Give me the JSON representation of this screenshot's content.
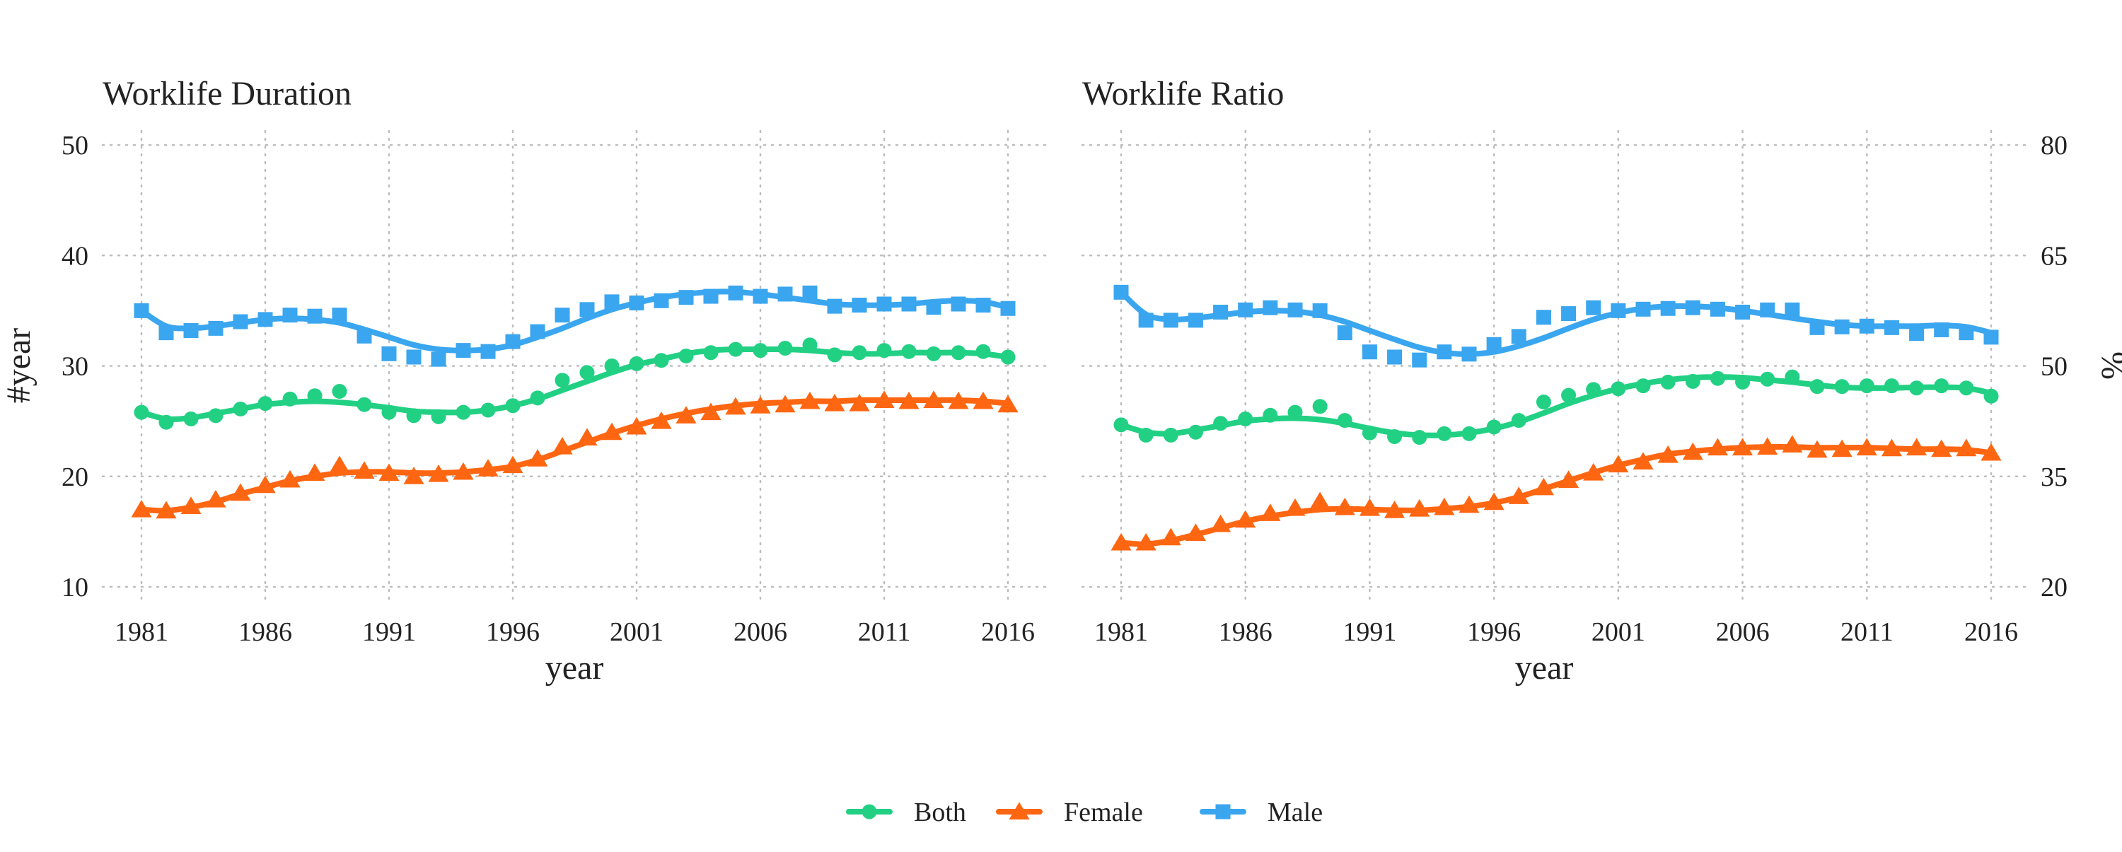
{
  "colors": {
    "Both": "#22d084",
    "Female": "#ff6611",
    "Male": "#3aa6ef"
  },
  "legend": {
    "position": "bottom",
    "items": [
      {
        "name": "Both",
        "marker": "circle"
      },
      {
        "name": "Female",
        "marker": "triangle"
      },
      {
        "name": "Male",
        "marker": "square"
      }
    ]
  },
  "chart_data": [
    {
      "type": "line",
      "title": "Worklife Duration",
      "xlabel": "year",
      "ylabel": "#year",
      "y_axis_side": "left",
      "xlim": [
        1981,
        2016
      ],
      "ylim": [
        10,
        50
      ],
      "x_ticks": [
        1981,
        1986,
        1991,
        1996,
        2001,
        2006,
        2011,
        2016
      ],
      "y_ticks": [
        10,
        20,
        30,
        40,
        50
      ],
      "grid": true,
      "x": [
        1981,
        1982,
        1983,
        1984,
        1985,
        1986,
        1987,
        1988,
        1989,
        1990,
        1991,
        1992,
        1993,
        1994,
        1995,
        1996,
        1997,
        1998,
        1999,
        2000,
        2001,
        2002,
        2003,
        2004,
        2005,
        2006,
        2007,
        2008,
        2009,
        2010,
        2011,
        2012,
        2013,
        2014,
        2015,
        2016
      ],
      "series": [
        {
          "name": "Both",
          "marker": "circle",
          "values": [
            25.8,
            24.9,
            25.2,
            25.5,
            26.1,
            26.6,
            27.0,
            27.3,
            27.7,
            26.5,
            25.8,
            25.5,
            25.4,
            25.8,
            26.0,
            26.4,
            27.1,
            28.7,
            29.4,
            30.0,
            30.2,
            30.5,
            30.9,
            31.2,
            31.5,
            31.4,
            31.6,
            31.9,
            31.0,
            31.2,
            31.4,
            31.3,
            31.1,
            31.2,
            31.3,
            30.8
          ],
          "trend": [
            25.8,
            25.2,
            25.3,
            25.7,
            26.1,
            26.5,
            26.7,
            26.8,
            26.7,
            26.5,
            26.2,
            25.9,
            25.8,
            25.8,
            26.0,
            26.4,
            27.0,
            27.8,
            28.6,
            29.4,
            30.1,
            30.6,
            31.1,
            31.4,
            31.5,
            31.5,
            31.5,
            31.4,
            31.2,
            31.1,
            31.1,
            31.2,
            31.2,
            31.2,
            31.1,
            30.8
          ]
        },
        {
          "name": "Female",
          "marker": "triangle",
          "values": [
            17.0,
            16.9,
            17.3,
            17.9,
            18.5,
            19.2,
            19.7,
            20.3,
            21.0,
            20.5,
            20.3,
            20.0,
            20.2,
            20.4,
            20.7,
            21.0,
            21.6,
            22.7,
            23.5,
            24.0,
            24.5,
            25.0,
            25.5,
            25.8,
            26.3,
            26.4,
            26.5,
            26.8,
            26.6,
            26.6,
            26.9,
            26.8,
            26.9,
            26.8,
            26.8,
            26.5
          ],
          "trend": [
            17.0,
            16.9,
            17.2,
            17.7,
            18.4,
            19.0,
            19.6,
            20.0,
            20.3,
            20.4,
            20.4,
            20.3,
            20.3,
            20.4,
            20.6,
            20.9,
            21.5,
            22.3,
            23.1,
            23.9,
            24.6,
            25.2,
            25.7,
            26.1,
            26.4,
            26.6,
            26.7,
            26.8,
            26.8,
            26.9,
            26.9,
            26.9,
            26.9,
            26.9,
            26.8,
            26.6
          ]
        },
        {
          "name": "Male",
          "marker": "square",
          "values": [
            35.0,
            33.0,
            33.2,
            33.4,
            34.0,
            34.2,
            34.6,
            34.5,
            34.6,
            32.7,
            31.1,
            30.8,
            30.6,
            31.4,
            31.3,
            32.2,
            33.1,
            34.6,
            35.1,
            35.8,
            35.7,
            35.9,
            36.2,
            36.3,
            36.6,
            36.3,
            36.5,
            36.6,
            35.4,
            35.5,
            35.6,
            35.6,
            35.3,
            35.6,
            35.5,
            35.2
          ],
          "trend": [
            35.0,
            33.6,
            33.4,
            33.6,
            33.9,
            34.2,
            34.3,
            34.2,
            33.9,
            33.3,
            32.6,
            31.9,
            31.5,
            31.4,
            31.5,
            31.9,
            32.6,
            33.4,
            34.3,
            35.1,
            35.7,
            36.2,
            36.5,
            36.7,
            36.7,
            36.5,
            36.2,
            35.9,
            35.6,
            35.5,
            35.5,
            35.6,
            35.8,
            35.9,
            35.8,
            35.3
          ]
        }
      ]
    },
    {
      "type": "line",
      "title": "Worklife Ratio",
      "xlabel": "year",
      "ylabel": "%",
      "y_axis_side": "right",
      "xlim": [
        1981,
        2016
      ],
      "ylim": [
        20,
        80
      ],
      "x_ticks": [
        1981,
        1986,
        1991,
        1996,
        2001,
        2006,
        2011,
        2016
      ],
      "y_ticks": [
        20,
        35,
        50,
        65,
        80
      ],
      "grid": true,
      "x": [
        1981,
        1982,
        1983,
        1984,
        1985,
        1986,
        1987,
        1988,
        1989,
        1990,
        1991,
        1992,
        1993,
        1994,
        1995,
        1996,
        1997,
        1998,
        1999,
        2000,
        2001,
        2002,
        2003,
        2004,
        2005,
        2006,
        2007,
        2008,
        2009,
        2010,
        2011,
        2012,
        2013,
        2014,
        2015,
        2016
      ],
      "series": [
        {
          "name": "Both",
          "marker": "circle",
          "values": [
            42.0,
            40.6,
            40.6,
            41.0,
            42.2,
            42.8,
            43.3,
            43.7,
            44.5,
            42.6,
            40.9,
            40.4,
            40.3,
            40.8,
            40.8,
            41.7,
            42.6,
            45.1,
            46.0,
            46.8,
            46.9,
            47.3,
            47.8,
            47.9,
            48.3,
            47.8,
            48.2,
            48.5,
            47.2,
            47.2,
            47.3,
            47.3,
            47.0,
            47.3,
            47.0,
            45.9
          ],
          "trend": [
            42.0,
            41.0,
            40.8,
            41.3,
            41.9,
            42.5,
            42.8,
            42.9,
            42.7,
            42.2,
            41.5,
            40.9,
            40.6,
            40.6,
            40.9,
            41.5,
            42.4,
            43.6,
            44.9,
            46.0,
            46.9,
            47.6,
            48.1,
            48.4,
            48.5,
            48.4,
            48.1,
            47.8,
            47.4,
            47.1,
            47.0,
            47.0,
            47.1,
            47.1,
            47.0,
            46.3
          ]
        },
        {
          "name": "Female",
          "marker": "triangle",
          "values": [
            26.0,
            26.0,
            26.7,
            27.3,
            28.5,
            29.1,
            30.0,
            30.7,
            31.6,
            30.8,
            30.7,
            30.4,
            30.6,
            30.8,
            31.1,
            31.5,
            32.3,
            33.5,
            34.5,
            35.5,
            36.6,
            37.0,
            37.9,
            38.3,
            38.9,
            38.9,
            39.0,
            39.3,
            38.6,
            38.7,
            38.9,
            38.8,
            38.9,
            38.7,
            38.8,
            38.2
          ],
          "trend": [
            26.0,
            25.8,
            26.3,
            27.1,
            28.0,
            28.9,
            29.6,
            30.1,
            30.5,
            30.6,
            30.5,
            30.4,
            30.4,
            30.6,
            30.9,
            31.4,
            32.2,
            33.3,
            34.4,
            35.5,
            36.5,
            37.3,
            38.0,
            38.4,
            38.7,
            38.9,
            39.0,
            39.0,
            38.9,
            38.9,
            38.9,
            38.8,
            38.7,
            38.7,
            38.6,
            38.2
          ]
        },
        {
          "name": "Male",
          "marker": "square",
          "values": [
            60.0,
            56.2,
            56.2,
            56.2,
            57.3,
            57.6,
            57.9,
            57.6,
            57.5,
            54.5,
            51.9,
            51.2,
            50.8,
            51.9,
            51.6,
            52.9,
            54.0,
            56.6,
            57.1,
            57.9,
            57.5,
            57.7,
            57.8,
            57.9,
            57.7,
            57.3,
            57.6,
            57.6,
            55.2,
            55.3,
            55.4,
            55.2,
            54.4,
            54.9,
            54.5,
            53.9
          ],
          "trend": [
            60.0,
            57.0,
            56.3,
            56.5,
            56.9,
            57.3,
            57.5,
            57.4,
            56.9,
            56.0,
            54.8,
            53.6,
            52.5,
            51.8,
            51.6,
            51.9,
            52.7,
            53.8,
            55.1,
            56.3,
            57.2,
            57.8,
            58.1,
            58.1,
            57.9,
            57.5,
            57.0,
            56.5,
            56.0,
            55.6,
            55.4,
            55.4,
            55.4,
            55.5,
            55.3,
            54.5
          ]
        }
      ]
    }
  ]
}
